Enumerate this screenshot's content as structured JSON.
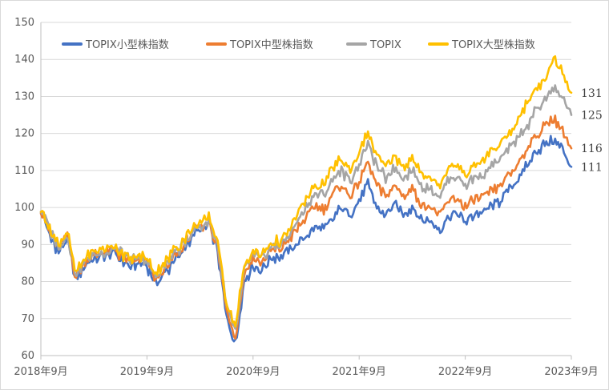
{
  "chart_data": {
    "type": "line",
    "title": "",
    "xlabel": "",
    "ylabel": "",
    "ylim": [
      60,
      150
    ],
    "y_ticks": [
      60,
      70,
      80,
      90,
      100,
      110,
      120,
      130,
      140,
      150
    ],
    "x_ticks": [
      "2018年9月",
      "2019年9月",
      "2020年9月",
      "2021年9月",
      "2022年9月",
      "2023年9月"
    ],
    "grid": "horizontal",
    "legend_position": "top",
    "x_start": "2018-09",
    "x_end": "2023-09",
    "series": [
      {
        "name": "TOPIX小型株指数",
        "color": "#4472C4",
        "end_label": "111",
        "values": [
          100,
          92,
          88,
          91,
          80,
          85,
          86,
          87,
          88,
          86,
          84,
          85,
          84,
          80,
          82,
          85,
          88,
          92,
          94,
          95,
          88,
          70,
          63,
          80,
          84,
          83,
          86,
          87,
          88,
          90,
          92,
          95,
          94,
          97,
          100,
          98,
          102,
          106,
          100,
          98,
          101,
          98,
          100,
          97,
          96,
          94,
          97,
          99,
          96,
          98,
          99,
          100,
          102,
          105,
          108,
          111,
          115,
          117,
          118,
          116,
          111
        ]
      },
      {
        "name": "TOPIX中型株指数",
        "color": "#ED7D31",
        "end_label": "116",
        "values": [
          100,
          93,
          89,
          92,
          81,
          86,
          87,
          88,
          89,
          87,
          85,
          86,
          85,
          81,
          83,
          86,
          89,
          93,
          95,
          96,
          89,
          72,
          65,
          82,
          86,
          85,
          88,
          89,
          91,
          94,
          97,
          101,
          99,
          104,
          106,
          103,
          107,
          112,
          106,
          103,
          106,
          103,
          105,
          101,
          100,
          98,
          101,
          103,
          100,
          102,
          103,
          104,
          106,
          109,
          112,
          116,
          119,
          122,
          124,
          121,
          116
        ]
      },
      {
        "name": "TOPIX",
        "color": "#A5A5A5",
        "end_label": "125",
        "values": [
          100,
          94,
          89,
          92,
          82,
          86,
          87,
          88,
          89,
          88,
          86,
          86,
          85,
          82,
          84,
          87,
          90,
          93,
          95,
          96,
          90,
          73,
          66,
          83,
          87,
          86,
          89,
          90,
          92,
          96,
          100,
          104,
          103,
          108,
          110,
          107,
          112,
          117,
          111,
          108,
          111,
          108,
          110,
          106,
          105,
          103,
          107,
          109,
          106,
          108,
          109,
          111,
          113,
          116,
          119,
          122,
          126,
          129,
          132,
          130,
          125
        ]
      },
      {
        "name": "TOPIX大型株指数",
        "color": "#FFC000",
        "end_label": "131",
        "values": [
          100,
          94,
          90,
          93,
          82,
          87,
          88,
          89,
          90,
          88,
          86,
          87,
          86,
          83,
          85,
          88,
          91,
          94,
          96,
          97,
          91,
          74,
          68,
          84,
          88,
          87,
          90,
          91,
          93,
          98,
          102,
          106,
          106,
          111,
          113,
          110,
          115,
          120,
          114,
          111,
          114,
          111,
          113,
          109,
          108,
          106,
          110,
          112,
          109,
          111,
          113,
          115,
          117,
          120,
          124,
          128,
          132,
          135,
          140,
          137,
          131
        ]
      }
    ]
  }
}
